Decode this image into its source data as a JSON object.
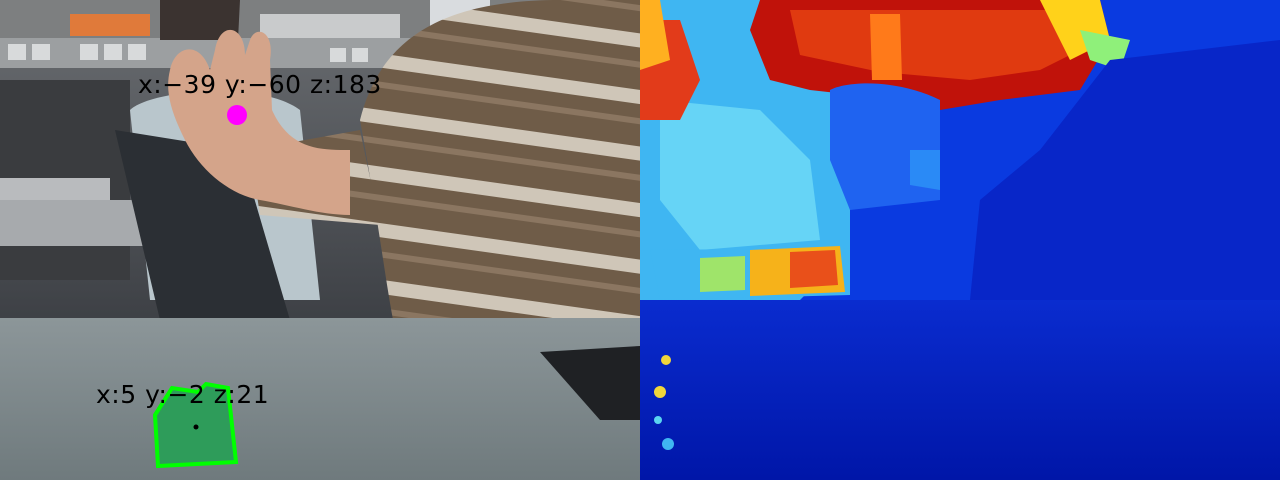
{
  "rgb_view": {
    "hand_marker": {
      "label": "x:−39 y:−60 z:183",
      "color": "#ff00ff"
    },
    "block_marker": {
      "label": "x:5 y:−2 z:21",
      "color": "#00ff00"
    }
  },
  "depth_view": {
    "colormap": "jet"
  }
}
